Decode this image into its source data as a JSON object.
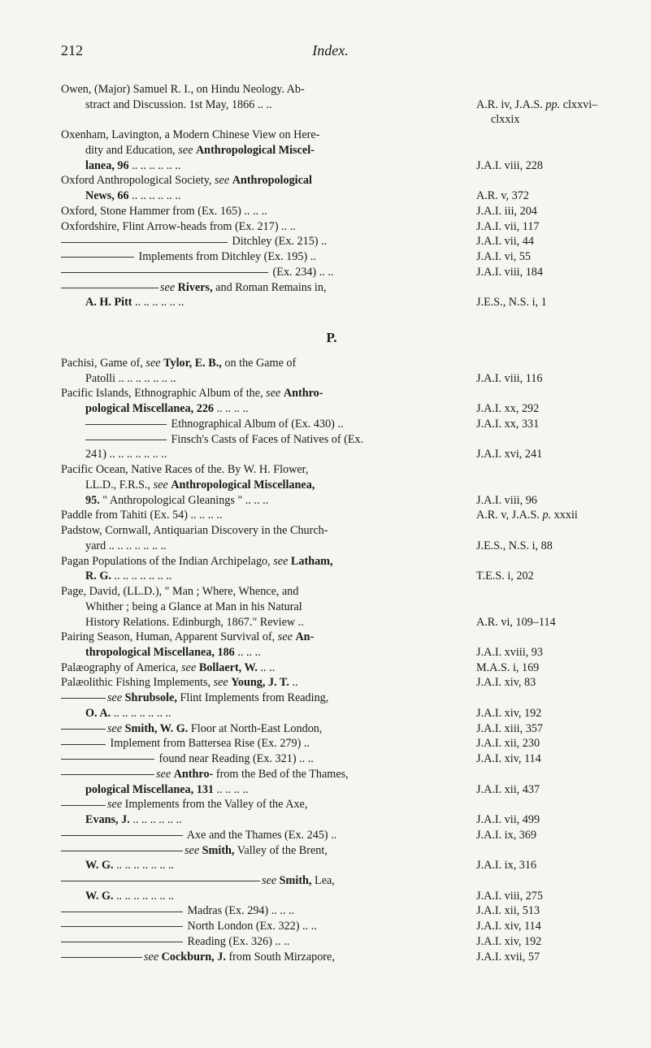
{
  "header": {
    "pageNum": "212",
    "title": "Index."
  },
  "sectionLetter": "P.",
  "colors": {
    "bg": "#f7f5ef",
    "text": "#1a1a1a"
  },
  "entries1": [
    {
      "l": "Owen, (Major) Samuel R. I., on Hindu Neology. Ab-",
      "r": ""
    },
    {
      "indent": 1,
      "lPre": "stract and Discussion.   1st May, 1866     ..     ..",
      "r": "A.R. iv, J.A.S. pp. clxxvi–",
      "rExtra": "clxxix"
    },
    {
      "l": "Oxenham, Lavington, a Modern Chinese View on Here-",
      "r": ""
    },
    {
      "indent": 1,
      "lPre": "dity and Education, ",
      "lItal": "see ",
      "lBold": "Anthropological Miscel-",
      "r": ""
    },
    {
      "indent": 1,
      "lBold": "lanea, 96",
      "lPost": "      ..     ..      ..      ..      ..      ..",
      "r": "J.A.I. viii, 228"
    },
    {
      "l": "Oxford Anthropological Society, ",
      "lItal": "see ",
      "lBold": "Anthropological",
      "r": ""
    },
    {
      "indent": 1,
      "lBold": "News, 66",
      "lPost": "      ..     ..      ..      ..      ..      ..",
      "r": "A.R. v, 372"
    },
    {
      "l": "Oxford, Stone Hammer from (Ex. 165) ..     ..     ..",
      "r": "J.A.I. iii, 204"
    },
    {
      "l": "Oxfordshire, Flint Arrow-heads from (Ex. 217) ..     ..",
      "r": "J.A.I. vii, 117"
    },
    {
      "rule": 205,
      "lPost": " Ditchley (Ex. 215)     ..",
      "r": "J.A.I. vii, 44"
    },
    {
      "rule": 90,
      "lPost": " Implements from Ditchley (Ex. 195)   ..",
      "r": "J.A.I. vi, 55"
    },
    {
      "rule": 255,
      "lPost": " (Ex. 234) ..    ..",
      "r": "J.A.I. viii, 184"
    },
    {
      "rule": 120,
      "lPost": " and Roman Remains in, ",
      "lItal": "see ",
      "lBold": "Rivers,",
      "r": ""
    },
    {
      "indent": 1,
      "lBold": "A. H. Pitt",
      "lPost": "      ..     ..     ..      ..      ..      ..",
      "r": "J.E.S., N.S. i, 1"
    }
  ],
  "entries2": [
    {
      "l": "Pachisi, Game of, ",
      "lItal": "see ",
      "lBold": "Tylor, E. B.,",
      "lPost": " on the Game of",
      "r": ""
    },
    {
      "indent": 1,
      "lPre": "Patolli ..      ..     ..      ..      ..      ..      ..",
      "r": "J.A.I. viii, 116"
    },
    {
      "l": "Pacific Islands, Ethnographic Album of the, ",
      "lItal": "see ",
      "lBold": "Anthro-",
      "r": ""
    },
    {
      "indent": 1,
      "lBold": "pological Miscellanea, 226",
      "lPost": " ..      ..      ..      ..",
      "r": "J.A.I. xx, 292"
    },
    {
      "rule": 100,
      "indent": 1,
      "lPost": " Ethnographical Album of (Ex. 430)   ..",
      "r": "J.A.I. xx, 331"
    },
    {
      "rule": 100,
      "indent": 1,
      "lPost": " Finsch's Casts of Faces of Natives of (Ex.",
      "r": ""
    },
    {
      "indent": 1,
      "lPre": "241)      ..     ..      ..      ..      ..      ..      ..",
      "r": "J.A.I. xvi, 241"
    },
    {
      "l": "Pacific Ocean, Native Races of the.   By W. H. Flower,",
      "r": ""
    },
    {
      "indent": 1,
      "lPre": "LL.D., F.R.S., ",
      "lItal": "see ",
      "lBold": "Anthropological Miscellanea,",
      "r": ""
    },
    {
      "indent": 1,
      "lBold": "95.",
      "lPost": "   \" Anthropological Gleanings \" ..     ..     ..",
      "r": "J.A.I. viii, 96"
    },
    {
      "l": "Paddle from Tahiti (Ex. 54)      ..     ..     ..     ..",
      "r": "A.R. v, J.A.S. p. xxxii"
    },
    {
      "l": "Padstow, Cornwall, Antiquarian Discovery in the Church-",
      "r": ""
    },
    {
      "indent": 1,
      "lPre": "yard     ..      ..      ..      ..      ..      ..      ..",
      "r": "J.E.S., N.S. i, 88"
    },
    {
      "l": "Pagan Populations of the Indian Archipelago, ",
      "lItal": "see ",
      "lBold": "Latham,",
      "r": ""
    },
    {
      "indent": 1,
      "lBold": "R. G.",
      "lPost": "   ..      ..     ..      ..      ..      ..      ..",
      "r": "T.E.S. i, 202"
    },
    {
      "l": "Page, David, (LL.D.), \" Man ;  Where, Whence, and",
      "r": ""
    },
    {
      "indent": 1,
      "lPre": "Whither ;  being a Glance at Man in his Natural",
      "r": ""
    },
    {
      "indent": 1,
      "lPre": "History Relations.   Edinburgh, 1867.\"   Review ..",
      "r": "A.R. vi, 109–114"
    },
    {
      "l": "Pairing Season, Human, Apparent Survival of, ",
      "lItal": "see ",
      "lBold": "An-",
      "r": ""
    },
    {
      "indent": 1,
      "lBold": "thropological Miscellanea, 186",
      "lPost": "    ..     ..     ..",
      "r": "J.A.I. xviii, 93"
    },
    {
      "l": "Palæography of America, ",
      "lItal": "see ",
      "lBold": "Bollaert, W.",
      "lPost": "     ..     ..",
      "r": "M.A.S. i, 169"
    },
    {
      "l": "Palæolithic Fishing Implements, ",
      "lItal": "see ",
      "lBold": "Young, J. T.",
      "lPost": "   ..",
      "r": "J.A.I. xiv, 83"
    },
    {
      "rule": 55,
      "lPost": " Flint Implements from Reading, ",
      "lItal": "see ",
      "lBold": "Shrubsole,",
      "r": ""
    },
    {
      "indent": 1,
      "lBold": "O. A.",
      "lPost": "   ..      ..      ..      ..      ..      ..      ..",
      "r": "J.A.I. xiv, 192"
    },
    {
      "rule": 55,
      "lPost": " Floor at North-East London, ",
      "lItal": "see ",
      "lBold": "Smith, W. G.",
      "r": "J.A.I. xiii, 357"
    },
    {
      "rule": 55,
      "lPost": " Implement from Battersea Rise (Ex. 279)     ..",
      "r": "J.A.I. xii, 230"
    },
    {
      "rule": 115,
      "lPost": " found near Reading (Ex. 321)   ..    ..",
      "r": "J.A.I. xiv, 114"
    },
    {
      "rule": 115,
      "lPost": " from the Bed of the Thames, ",
      "lItal": "see ",
      "lBold": "Anthro-",
      "r": ""
    },
    {
      "indent": 1,
      "lBold": "pological Miscellanea, 131",
      "lPost": " ..      ..      ..     ..",
      "r": "J.A.I. xii, 437"
    },
    {
      "rule": 55,
      "lPost": " Implements from the Valley of the Axe, ",
      "lItal": "see",
      "r": ""
    },
    {
      "indent": 1,
      "lBold": "Evans, J.",
      "lPost": "      ..      ..      ..      ..      ..      ..",
      "r": "J.A.I. vii, 499"
    },
    {
      "rule": 150,
      "lPost": " Axe and the Thames (Ex. 245) ..",
      "r": "J.A.I. ix, 369"
    },
    {
      "rule": 150,
      "lPost": " Valley of the Brent, ",
      "lItal": "see ",
      "lBold": "Smith,",
      "r": ""
    },
    {
      "indent": 1,
      "lBold": "W. G.",
      "lPost": "   ..      ..      ..      ..      ..      ..      ..",
      "r": "J.A.I. ix, 316"
    },
    {
      "rule": 245,
      "lPost": " Lea, ",
      "lItal": "see ",
      "lBold": "Smith,",
      "r": ""
    },
    {
      "indent": 1,
      "lBold": "W. G.",
      "lPost": "   ..      ..      ..      ..      ..      ..      ..",
      "r": "J.A.I. viii, 275"
    },
    {
      "rule": 150,
      "lPost": " Madras (Ex. 294) ..     ..     ..",
      "r": "J.A.I. xii, 513"
    },
    {
      "rule": 150,
      "lPost": " North London (Ex. 322) ..    ..",
      "r": "J.A.I. xiv, 114"
    },
    {
      "rule": 150,
      "lPost": " Reading (Ex. 326)       ..    ..",
      "r": "J.A.I. xiv, 192"
    },
    {
      "rule": 100,
      "lPost": " from South Mirzapore, ",
      "lItal": "see ",
      "lBold": "Cockburn, J.",
      "r": "J.A.I. xvii, 57"
    }
  ]
}
